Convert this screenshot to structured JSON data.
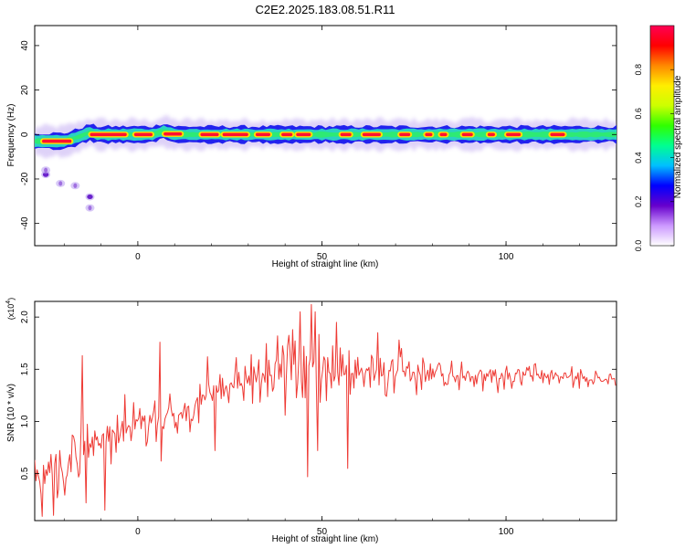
{
  "title": "C2E2.2025.183.08.51.R11",
  "colors": {
    "snr_line": "#ee3a34",
    "spectrum_track_core": "#2ad1c2",
    "spectrum_track_edge": "#2222ee",
    "spectrum_halo": "#b89cf0"
  },
  "chart_data": [
    {
      "id": "spectrogram",
      "type": "heatmap",
      "xlabel": "Height of straight line (km)",
      "ylabel": "Frequency (Hz)",
      "xlim": [
        -28,
        130
      ],
      "ylim": [
        -50,
        49
      ],
      "xticks": [
        0,
        50,
        100
      ],
      "yticks": [
        -40,
        -20,
        0,
        20,
        40
      ],
      "colorbar": {
        "label": "Normalized spectral amplitude",
        "range": [
          0,
          1
        ],
        "ticks": [
          0.0,
          0.2,
          0.4,
          0.6,
          0.8
        ],
        "tick_labels": [
          "0.0",
          "0.2",
          "0.4",
          "0.6",
          "0.8"
        ],
        "colormap": [
          "#ffffff",
          "#cc99ff",
          "#6600cc",
          "#0000ff",
          "#00c0ff",
          "#00ff90",
          "#30ff00",
          "#ccff00",
          "#ffee00",
          "#ff8800",
          "#ff0000",
          "#ff0055"
        ]
      },
      "ridge": [
        [
          -28,
          -3
        ],
        [
          -20,
          -3
        ],
        [
          -16,
          -1
        ],
        [
          -13,
          1
        ],
        [
          -11,
          0
        ],
        [
          0,
          0
        ],
        [
          4,
          0
        ],
        [
          7,
          1.5
        ],
        [
          10,
          0
        ],
        [
          130,
          0
        ]
      ],
      "peak_segments": [
        [
          -26,
          -18
        ],
        [
          -13,
          -3
        ],
        [
          -1,
          4
        ],
        [
          7,
          12
        ],
        [
          17,
          22
        ],
        [
          23,
          30
        ],
        [
          32,
          36
        ],
        [
          39,
          42
        ],
        [
          43,
          47
        ],
        [
          55,
          58
        ],
        [
          61,
          66
        ],
        [
          71,
          74
        ],
        [
          78,
          80
        ],
        [
          82,
          84
        ],
        [
          88,
          91
        ],
        [
          95,
          97
        ],
        [
          100,
          104
        ],
        [
          112,
          116
        ]
      ],
      "isolated_blobs": [
        [
          -25,
          -18
        ],
        [
          -25,
          -16
        ],
        [
          -21,
          -22
        ],
        [
          -17,
          -23
        ],
        [
          -13,
          -28
        ],
        [
          -13,
          -33
        ]
      ]
    },
    {
      "id": "snr",
      "type": "line",
      "xlabel": "Height of straight line (km)",
      "ylabel": "SNR (10 * v/v)",
      "multiplier": "(x10",
      "multiplier_exponent": "4",
      "xlim": [
        -28,
        130
      ],
      "ylim": [
        0.05,
        2.15
      ],
      "xticks": [
        0,
        50,
        100
      ],
      "yticks": [
        0.5,
        1.0,
        1.5,
        2.0
      ],
      "ytick_labels": [
        "0.5",
        "1.0",
        "1.5",
        "2.0"
      ],
      "series": [
        {
          "baseline": [
            [
              -28,
              0.45
            ],
            [
              -20,
              0.6
            ],
            [
              -12,
              0.78
            ],
            [
              -5,
              0.9
            ],
            [
              0,
              1.0
            ],
            [
              5,
              1.0
            ],
            [
              10,
              1.05
            ],
            [
              15,
              1.15
            ],
            [
              20,
              1.28
            ],
            [
              25,
              1.35
            ],
            [
              30,
              1.4
            ],
            [
              35,
              1.45
            ],
            [
              40,
              1.5
            ],
            [
              45,
              1.5
            ],
            [
              50,
              1.48
            ],
            [
              55,
              1.45
            ],
            [
              60,
              1.45
            ],
            [
              65,
              1.45
            ],
            [
              70,
              1.45
            ],
            [
              75,
              1.45
            ],
            [
              80,
              1.45
            ],
            [
              85,
              1.45
            ],
            [
              90,
              1.45
            ],
            [
              100,
              1.45
            ],
            [
              110,
              1.43
            ],
            [
              120,
              1.42
            ],
            [
              130,
              1.4
            ]
          ],
          "amplitude": [
            [
              -28,
              0.3
            ],
            [
              -15,
              0.38
            ],
            [
              0,
              0.32
            ],
            [
              10,
              0.32
            ],
            [
              20,
              0.22
            ],
            [
              30,
              0.3
            ],
            [
              40,
              0.38
            ],
            [
              48,
              0.45
            ],
            [
              60,
              0.32
            ],
            [
              80,
              0.25
            ],
            [
              100,
              0.18
            ],
            [
              115,
              0.12
            ],
            [
              130,
              0.1
            ]
          ],
          "spikes": [
            [
              -26,
              0.09
            ],
            [
              -23,
              0.1
            ],
            [
              -15,
              1.63
            ],
            [
              -14,
              0.22
            ],
            [
              -9,
              0.15
            ],
            [
              6,
              1.76
            ],
            [
              6.5,
              0.62
            ],
            [
              14,
              0.9
            ],
            [
              19,
              1.62
            ],
            [
              21,
              0.72
            ],
            [
              38,
              1.82
            ],
            [
              40,
              1.06
            ],
            [
              42,
              1.88
            ],
            [
              44,
              2.05
            ],
            [
              45,
              1.72
            ],
            [
              46,
              0.47
            ],
            [
              47,
              2.12
            ],
            [
              48,
              2.05
            ],
            [
              49,
              0.72
            ],
            [
              54,
              1.95
            ],
            [
              57,
              0.55
            ],
            [
              65,
              1.85
            ],
            [
              71,
              1.78
            ]
          ]
        }
      ]
    }
  ]
}
